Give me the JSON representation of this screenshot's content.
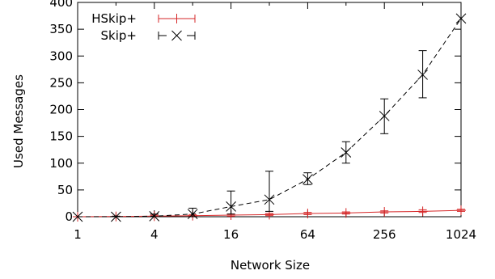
{
  "chart_data": {
    "type": "line",
    "xlabel": "Network Size",
    "ylabel": "Used Messages",
    "x_scale": "log2",
    "xlim": [
      1,
      1024
    ],
    "ylim": [
      0,
      400
    ],
    "x_ticks": [
      {
        "value": 1,
        "label": "1"
      },
      {
        "value": 4,
        "label": "4"
      },
      {
        "value": 16,
        "label": "16"
      },
      {
        "value": 64,
        "label": "64"
      },
      {
        "value": 256,
        "label": "256"
      },
      {
        "value": 1024,
        "label": "1024"
      }
    ],
    "y_ticks": [
      0,
      50,
      100,
      150,
      200,
      250,
      300,
      350,
      400
    ],
    "legend_position": "top-left",
    "series": [
      {
        "name": "HSkip+",
        "color": "#d62728",
        "marker": "plus",
        "line": "solid",
        "points": [
          {
            "x": 1,
            "y": 0,
            "low": 0,
            "high": 0
          },
          {
            "x": 2,
            "y": 0.5,
            "low": 0,
            "high": 1
          },
          {
            "x": 4,
            "y": 1,
            "low": 0,
            "high": 3
          },
          {
            "x": 8,
            "y": 2,
            "low": 1,
            "high": 4
          },
          {
            "x": 16,
            "y": 3,
            "low": 1,
            "high": 5
          },
          {
            "x": 32,
            "y": 4,
            "low": 2,
            "high": 6
          },
          {
            "x": 64,
            "y": 6,
            "low": 4,
            "high": 8
          },
          {
            "x": 128,
            "y": 7,
            "low": 5,
            "high": 9
          },
          {
            "x": 256,
            "y": 9,
            "low": 7,
            "high": 11
          },
          {
            "x": 512,
            "y": 10,
            "low": 8,
            "high": 13
          },
          {
            "x": 1024,
            "y": 12,
            "low": 10,
            "high": 14
          }
        ]
      },
      {
        "name": "Skip+",
        "color": "#000000",
        "marker": "cross",
        "line": "dashed",
        "points": [
          {
            "x": 1,
            "y": 0,
            "low": 0,
            "high": 0
          },
          {
            "x": 2,
            "y": 0,
            "low": 0,
            "high": 1
          },
          {
            "x": 4,
            "y": 1,
            "low": 0,
            "high": 5
          },
          {
            "x": 8,
            "y": 5,
            "low": 0,
            "high": 16
          },
          {
            "x": 16,
            "y": 19,
            "low": 5,
            "high": 48
          },
          {
            "x": 32,
            "y": 32,
            "low": 10,
            "high": 85
          },
          {
            "x": 64,
            "y": 70,
            "low": 60,
            "high": 82
          },
          {
            "x": 128,
            "y": 120,
            "low": 100,
            "high": 140
          },
          {
            "x": 256,
            "y": 188,
            "low": 155,
            "high": 220
          },
          {
            "x": 512,
            "y": 265,
            "low": 222,
            "high": 310
          },
          {
            "x": 1024,
            "y": 370,
            "low": 370,
            "high": 370
          }
        ]
      }
    ]
  }
}
